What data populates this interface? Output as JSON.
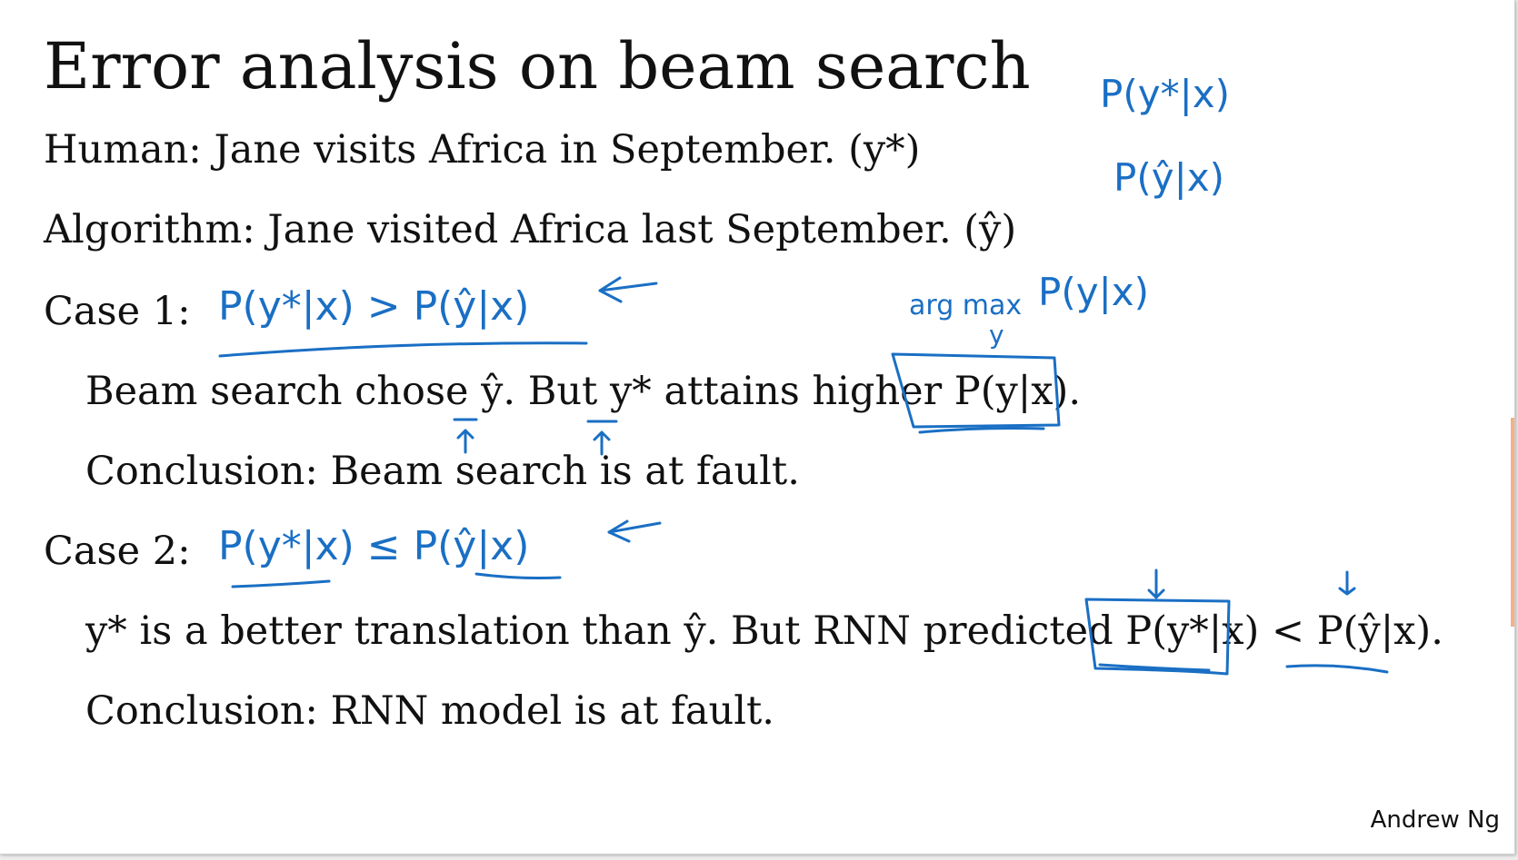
{
  "slide": {
    "title": "Error analysis on beam search",
    "human": "Human: Jane visits Africa in September. (y*)",
    "algorithm": "Algorithm: Jane visited Africa last September. (ŷ)",
    "case1": {
      "label": "Case 1:",
      "line1": "Beam search chose ŷ. But y* attains higher P(y|x).",
      "conclusion": "Conclusion: Beam search is at fault."
    },
    "case2": {
      "label": "Case 2:",
      "line1": "y* is a better translation than ŷ. But RNN predicted P(y*|x) < P(ŷ|x).",
      "conclusion": "Conclusion: RNN model is at fault."
    },
    "attribution": "Andrew Ng"
  },
  "annotations": {
    "top_right_1": "P(y*|x)",
    "top_right_2": "P(ŷ|x)",
    "case1_ink": "P(y*|x) > P(ŷ|x)",
    "argmax_ink": "arg max",
    "argmax_sub": "y",
    "argmax_rhs": "P(y|x)",
    "case2_ink": "P(y*|x) ≤ P(ŷ|x)",
    "ink_color": "#1a6fc4"
  }
}
